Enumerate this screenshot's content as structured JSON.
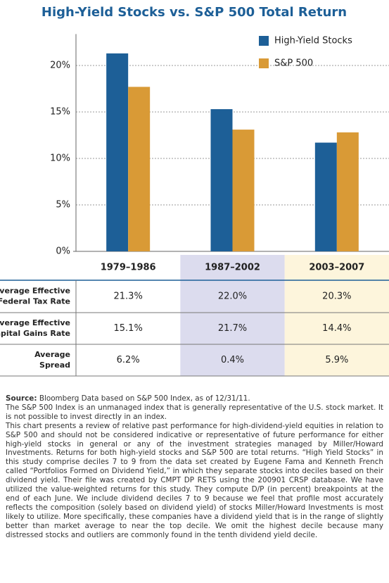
{
  "chart_data": {
    "type": "bar",
    "title": "High-Yield Stocks vs. S&P 500 Total Return",
    "categories": [
      "1979–1986",
      "1987–2002",
      "2003–2007"
    ],
    "series": [
      {
        "name": "High-Yield Stocks",
        "color": "#1d5f97",
        "values": [
          21.3,
          15.3,
          11.7
        ]
      },
      {
        "name": "S&P 500",
        "color": "#d99a36",
        "values": [
          17.7,
          13.1,
          12.8
        ]
      }
    ],
    "ylim": [
      0,
      23
    ],
    "yticks": [
      {
        "value": 0,
        "label": "0%"
      },
      {
        "value": 5,
        "label": "5%"
      },
      {
        "value": 10,
        "label": "10%"
      },
      {
        "value": 15,
        "label": "15%"
      },
      {
        "value": 20,
        "label": "20%"
      }
    ],
    "grid": true,
    "legend": "top-right"
  },
  "table": {
    "rows": [
      {
        "label": [
          "Average Effective",
          "Federal Tax Rate"
        ],
        "values": [
          "21.3%",
          "22.0%",
          "20.3%"
        ]
      },
      {
        "label": [
          "Average Effective",
          "Capital Gains Rate"
        ],
        "values": [
          "15.1%",
          "21.7%",
          "14.4%"
        ]
      },
      {
        "label": [
          "Average",
          "Spread"
        ],
        "values": [
          "6.2%",
          "0.4%",
          "5.9%"
        ]
      }
    ]
  },
  "notes": {
    "source_label": "Source:",
    "source_text": "Bloomberg Data based on S&P 500 Index, as of 12/31/11.",
    "p1": "The S&P 500 Index is an unmanaged index that is generally representative of the U.S. stock market. It is not possible to invest directly in an index.",
    "p2": "This chart presents a review of relative past performance for high-dividend-yield equities in relation to S&P 500 and should not be considered indicative or representative of future performance for either high-yield stocks in general or any of the investment strategies managed by Miller/Howard Investments. Returns for both high-yield stocks and S&P 500 are total returns. “High Yield Stocks” in this study comprise deciles 7 to 9 from the data set created by Eugene Fama and Kenneth French called “Portfolios Formed on Dividend Yield,” in which they separate stocks into deciles based on their dividend yield. Their file was created by CMPT DP RETS using the 200901 CRSP database. We have utilized the value-weighted returns for this study. They compute D/P (in percent) breakpoints at the end of each June. We include dividend deciles 7 to 9 because we feel that profile most accurately reflects the composition (solely based on dividend yield) of stocks Miller/Howard Investments is most likely to utilize. More specifically, these companies have a dividend yield that is in the range of slightly better than market average to near the top decile. We omit the highest decile because many distressed stocks and outliers are commonly found in the tenth dividend yield decile."
  }
}
